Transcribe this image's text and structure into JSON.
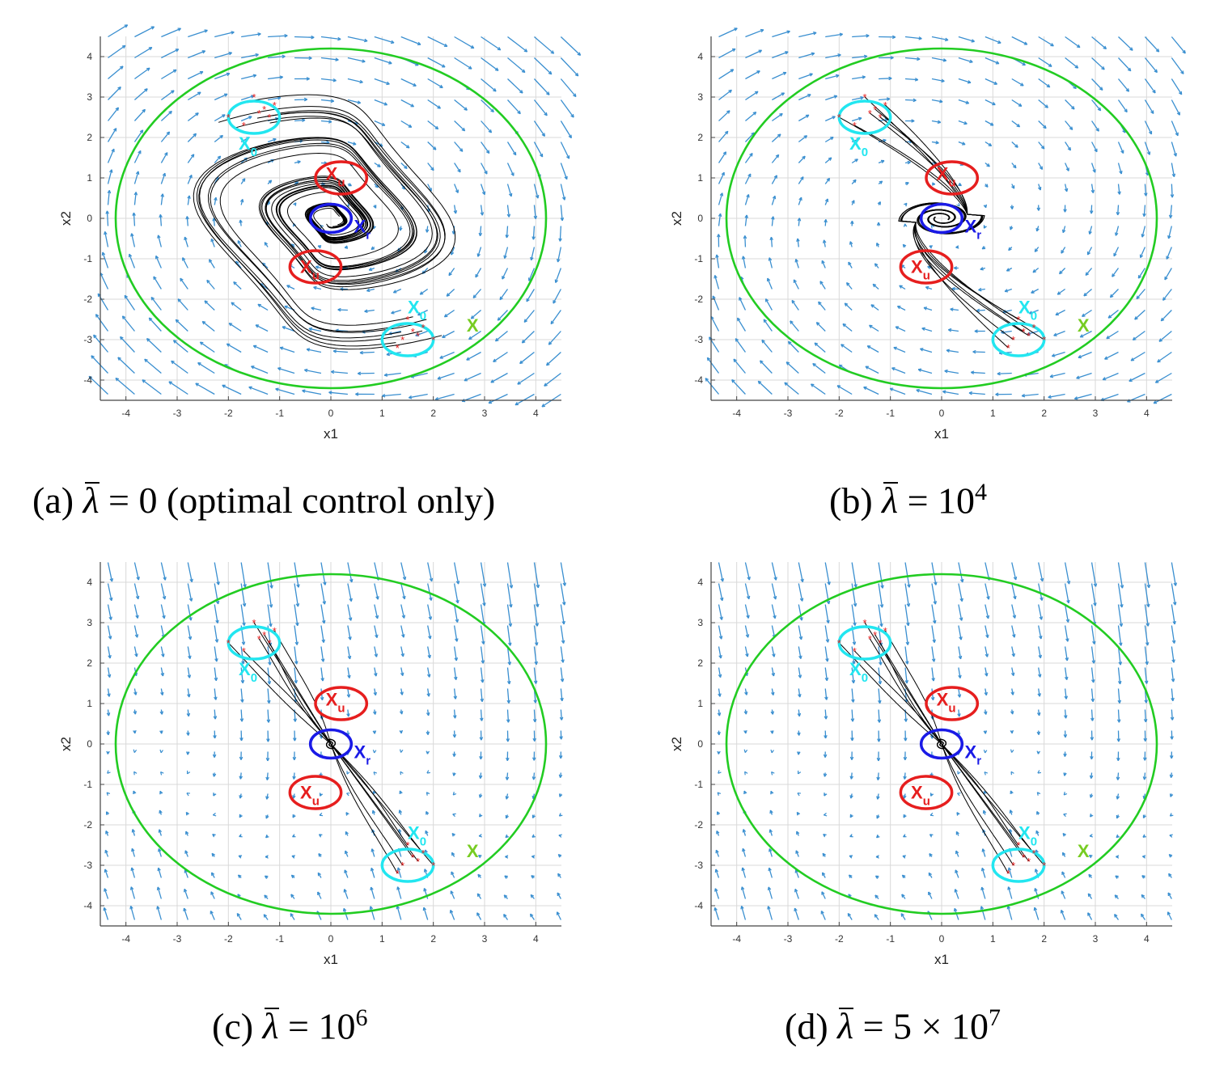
{
  "figure": {
    "panels": [
      {
        "id": "a",
        "caption": {
          "prefix": "(a) ",
          "lambda": "λ",
          "rest": " = 0 (optimal control only)",
          "sup": ""
        },
        "mode": "spiral"
      },
      {
        "id": "b",
        "caption": {
          "prefix": "(b) ",
          "lambda": "λ",
          "rest": " = 10",
          "sup": "4"
        },
        "mode": "partial"
      },
      {
        "id": "c",
        "caption": {
          "prefix": "(c) ",
          "lambda": "λ",
          "rest": " = 10",
          "sup": "6"
        },
        "mode": "direct"
      },
      {
        "id": "d",
        "caption": {
          "prefix": "(d) ",
          "lambda": "λ",
          "rest": " = 5 × 10",
          "sup": "7"
        },
        "mode": "direct"
      }
    ],
    "colors": {
      "quiver": "#3a8fd0",
      "safe_set": "#22cc22",
      "initial_set": "#22e6f0",
      "unsafe_set": "#e61e1e",
      "target_set": "#1a1ae6",
      "trajectory": "#000000",
      "start_marker": "#e61e1e",
      "label_x": "#77cc22"
    }
  },
  "chart_data": [
    {
      "type": "phase-portrait",
      "xlabel": "x1",
      "ylabel": "x2",
      "xlim": [
        -4.5,
        4.5
      ],
      "ylim": [
        -4.5,
        4.5
      ],
      "xticks": [
        -4,
        -3,
        -2,
        -1,
        0,
        1,
        2,
        3,
        4
      ],
      "yticks": [
        -4,
        -3,
        -2,
        -1,
        0,
        1,
        2,
        3,
        4
      ],
      "grid": true,
      "sets": {
        "X": {
          "label": "X",
          "center": [
            0,
            0
          ],
          "radii": [
            4.2,
            4.2
          ]
        },
        "X0": [
          {
            "label": "X",
            "sub": "0",
            "center": [
              -1.5,
              2.5
            ],
            "radii": [
              0.5,
              0.4
            ]
          },
          {
            "label": "X",
            "sub": "0",
            "center": [
              1.5,
              -3.0
            ],
            "radii": [
              0.5,
              0.4
            ]
          }
        ],
        "Xu": [
          {
            "label": "X",
            "sub": "u",
            "center": [
              0.2,
              1.0
            ],
            "radii": [
              0.5,
              0.4
            ]
          },
          {
            "label": "X",
            "sub": "u",
            "center": [
              -0.3,
              -1.2
            ],
            "radii": [
              0.5,
              0.4
            ]
          }
        ],
        "Xr": {
          "label": "X",
          "sub": "r",
          "center": [
            0,
            0
          ],
          "radii": [
            0.4,
            0.35
          ]
        }
      },
      "initial_points": [
        [
          -2.0,
          2.5
        ],
        [
          -1.5,
          3.0
        ],
        [
          -1.7,
          2.3
        ],
        [
          -1.4,
          2.6
        ],
        [
          -1.3,
          2.7
        ],
        [
          -1.1,
          2.8
        ],
        [
          -1.2,
          2.5
        ],
        [
          2.0,
          -3.0
        ],
        [
          1.5,
          -2.5
        ],
        [
          1.3,
          -3.2
        ],
        [
          1.6,
          -2.8
        ],
        [
          1.8,
          -2.7
        ],
        [
          1.4,
          -3.0
        ],
        [
          1.7,
          -2.9
        ]
      ]
    }
  ]
}
